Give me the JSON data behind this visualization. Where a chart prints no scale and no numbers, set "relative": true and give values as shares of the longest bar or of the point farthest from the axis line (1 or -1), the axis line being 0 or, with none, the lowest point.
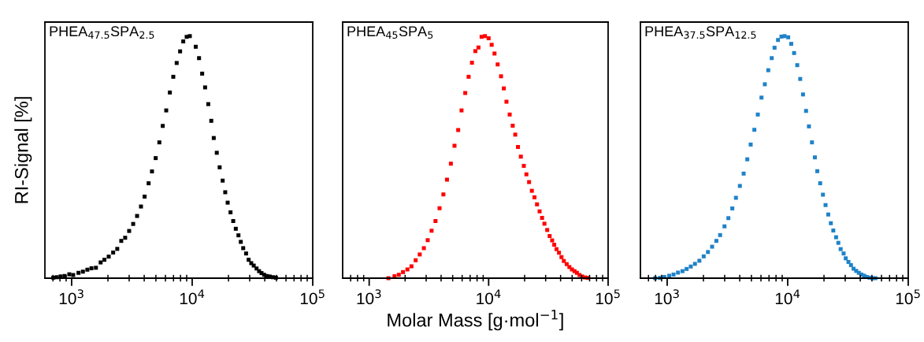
{
  "chart_data": [
    {
      "type": "scatter",
      "title": "PHEA$_{47.5}$SPA$_{2.5}$",
      "ylabel": "RI-Signal [%]",
      "relative": true,
      "marker": "square",
      "tick_labels": "x",
      "grid": false,
      "legend": false,
      "xlim": [
        600,
        100000
      ],
      "log": "x",
      "xticks": [
        {
          "value": 700,
          "label": null
        },
        {
          "value": 800,
          "label": null
        },
        {
          "value": 900,
          "label": null
        },
        {
          "value": 1000,
          "label": "10$^{3}$"
        },
        {
          "value": 2000,
          "label": null
        },
        {
          "value": 3000,
          "label": null
        },
        {
          "value": 4000,
          "label": null
        },
        {
          "value": 5000,
          "label": null
        },
        {
          "value": 6000,
          "label": null
        },
        {
          "value": 7000,
          "label": null
        },
        {
          "value": 8000,
          "label": null
        },
        {
          "value": 9000,
          "label": null
        },
        {
          "value": 10000,
          "label": "10$^{4}$"
        },
        {
          "value": 20000,
          "label": null
        },
        {
          "value": 30000,
          "label": null
        },
        {
          "value": 40000,
          "label": null
        },
        {
          "value": 50000,
          "label": null
        },
        {
          "value": 60000,
          "label": null
        },
        {
          "value": 70000,
          "label": null
        },
        {
          "value": 80000,
          "label": null
        },
        {
          "value": 90000,
          "label": null
        },
        {
          "value": 100000,
          "label": "10$^{5}$"
        }
      ],
      "series": [
        {
          "color": "#000000",
          "x": [
            704,
            752,
            810,
            873,
            956,
            1030,
            1140,
            1240,
            1350,
            1460,
            1590,
            1740,
            1870,
            2030,
            2210,
            2390,
            2580,
            2780,
            3000,
            3240,
            3490,
            3760,
            4030,
            4350,
            4640,
            4980,
            5340,
            5700,
            6090,
            6530,
            6970,
            7440,
            7940,
            8430,
            9000,
            9560,
            10700,
            11400,
            12100,
            12800,
            13600,
            14400,
            15100,
            16000,
            16900,
            17900,
            18800,
            19700,
            20800,
            21900,
            23000,
            24200,
            25300,
            26500,
            28000,
            29400,
            30900,
            32400,
            34200,
            35900,
            37600,
            39500,
            41500,
            43900,
            46700,
            49500
          ],
          "values": [
            0.002,
            0.004,
            0.007,
            0.009,
            0.016,
            0.013,
            0.022,
            0.027,
            0.035,
            0.041,
            0.043,
            0.065,
            0.076,
            0.089,
            0.106,
            0.121,
            0.154,
            0.167,
            0.195,
            0.224,
            0.257,
            0.296,
            0.337,
            0.392,
            0.441,
            0.496,
            0.561,
            0.629,
            0.693,
            0.767,
            0.832,
            0.889,
            0.937,
            0.978,
            0.997,
            1.0,
            0.956,
            0.909,
            0.845,
            0.788,
            0.719,
            0.65,
            0.579,
            0.518,
            0.458,
            0.403,
            0.355,
            0.312,
            0.272,
            0.236,
            0.204,
            0.177,
            0.15,
            0.124,
            0.102,
            0.076,
            0.062,
            0.052,
            0.04,
            0.029,
            0.021,
            0.014,
            0.009,
            0.007,
            0.004,
            0.002
          ]
        }
      ]
    },
    {
      "type": "scatter",
      "title": "PHEA$_{45}$SPA$_{5}$",
      "xlabel": "Molar Mass [g·mol$^{−1}$]",
      "relative": true,
      "marker": "square",
      "tick_labels": "x",
      "grid": false,
      "legend": false,
      "xlim": [
        600,
        100000
      ],
      "log": "x",
      "xticks": [
        {
          "value": 700,
          "label": null
        },
        {
          "value": 800,
          "label": null
        },
        {
          "value": 900,
          "label": null
        },
        {
          "value": 1000,
          "label": "10$^{3}$"
        },
        {
          "value": 2000,
          "label": null
        },
        {
          "value": 3000,
          "label": null
        },
        {
          "value": 4000,
          "label": null
        },
        {
          "value": 5000,
          "label": null
        },
        {
          "value": 6000,
          "label": null
        },
        {
          "value": 7000,
          "label": null
        },
        {
          "value": 8000,
          "label": null
        },
        {
          "value": 9000,
          "label": null
        },
        {
          "value": 10000,
          "label": "10$^{4}$"
        },
        {
          "value": 20000,
          "label": null
        },
        {
          "value": 30000,
          "label": null
        },
        {
          "value": 40000,
          "label": null
        },
        {
          "value": 50000,
          "label": null
        },
        {
          "value": 60000,
          "label": null
        },
        {
          "value": 70000,
          "label": null
        },
        {
          "value": 80000,
          "label": null
        },
        {
          "value": 90000,
          "label": null
        },
        {
          "value": 100000,
          "label": "10$^{5}$"
        }
      ],
      "series": [
        {
          "color": "#ff0000",
          "x": [
            1450,
            1630,
            1770,
            1920,
            2090,
            2260,
            2450,
            2650,
            2870,
            3090,
            3330,
            3590,
            3880,
            4180,
            4480,
            4830,
            5180,
            5560,
            5930,
            6370,
            6800,
            7250,
            7740,
            8220,
            8730,
            9320,
            10000,
            10600,
            11200,
            11900,
            12700,
            13400,
            14100,
            15000,
            15900,
            16700,
            17600,
            18600,
            19700,
            20700,
            21800,
            23000,
            24200,
            25400,
            26700,
            28000,
            29300,
            30900,
            32400,
            34000,
            35400,
            37000,
            38800,
            40700,
            42600,
            45000,
            47400,
            49800,
            52300,
            54800,
            57600,
            60600,
            64000,
            67600
          ],
          "values": [
            0.0,
            0.008,
            0.014,
            0.025,
            0.036,
            0.049,
            0.074,
            0.098,
            0.124,
            0.157,
            0.196,
            0.236,
            0.289,
            0.346,
            0.407,
            0.473,
            0.547,
            0.612,
            0.693,
            0.765,
            0.832,
            0.89,
            0.938,
            0.953,
            0.997,
            1.0,
            0.991,
            0.964,
            0.928,
            0.883,
            0.834,
            0.784,
            0.729,
            0.676,
            0.63,
            0.593,
            0.542,
            0.502,
            0.464,
            0.429,
            0.397,
            0.361,
            0.334,
            0.305,
            0.276,
            0.249,
            0.225,
            0.199,
            0.174,
            0.156,
            0.138,
            0.12,
            0.105,
            0.087,
            0.071,
            0.058,
            0.046,
            0.036,
            0.029,
            0.022,
            0.013,
            0.007,
            0.003,
            0.001
          ]
        }
      ]
    },
    {
      "type": "scatter",
      "title": "PHEA$_{37.5}$SPA$_{12.5}$",
      "relative": true,
      "marker": "square",
      "tick_labels": "x",
      "grid": false,
      "legend": false,
      "xlim": [
        600,
        100000
      ],
      "log": "x",
      "xticks": [
        {
          "value": 700,
          "label": null
        },
        {
          "value": 800,
          "label": null
        },
        {
          "value": 900,
          "label": null
        },
        {
          "value": 1000,
          "label": "10$^{3}$"
        },
        {
          "value": 2000,
          "label": null
        },
        {
          "value": 3000,
          "label": null
        },
        {
          "value": 4000,
          "label": null
        },
        {
          "value": 5000,
          "label": null
        },
        {
          "value": 6000,
          "label": null
        },
        {
          "value": 7000,
          "label": null
        },
        {
          "value": 8000,
          "label": null
        },
        {
          "value": 9000,
          "label": null
        },
        {
          "value": 10000,
          "label": "10$^{4}$"
        },
        {
          "value": 20000,
          "label": null
        },
        {
          "value": 30000,
          "label": null
        },
        {
          "value": 40000,
          "label": null
        },
        {
          "value": 50000,
          "label": null
        },
        {
          "value": 60000,
          "label": null
        },
        {
          "value": 70000,
          "label": null
        },
        {
          "value": 80000,
          "label": null
        },
        {
          "value": 90000,
          "label": null
        },
        {
          "value": 100000,
          "label": "10$^{5}$"
        }
      ],
      "series": [
        {
          "color": "#1f82c8",
          "x": [
            794,
            869,
            947,
            1040,
            1130,
            1230,
            1340,
            1450,
            1570,
            1700,
            1850,
            2010,
            2180,
            2360,
            2560,
            2750,
            2990,
            3220,
            3470,
            3720,
            4010,
            4310,
            4620,
            4930,
            5290,
            5650,
            6060,
            6460,
            6900,
            7370,
            7780,
            8310,
            8870,
            9420,
            10100,
            10700,
            11300,
            12000,
            12700,
            13400,
            14200,
            15000,
            15900,
            16800,
            17600,
            18600,
            19600,
            20600,
            21700,
            22800,
            23900,
            25200,
            26300,
            27500,
            29100,
            30300,
            31900,
            33500,
            35200,
            37000,
            38900,
            40900,
            43100,
            45300,
            47800,
            50500,
            53400
          ],
          "values": [
            0.0,
            0.001,
            0.005,
            0.01,
            0.015,
            0.023,
            0.029,
            0.038,
            0.048,
            0.059,
            0.072,
            0.09,
            0.108,
            0.13,
            0.154,
            0.178,
            0.214,
            0.248,
            0.288,
            0.332,
            0.381,
            0.432,
            0.491,
            0.552,
            0.613,
            0.676,
            0.746,
            0.801,
            0.859,
            0.909,
            0.952,
            0.984,
            0.998,
            1.0,
            0.995,
            0.968,
            0.93,
            0.88,
            0.823,
            0.759,
            0.691,
            0.627,
            0.561,
            0.499,
            0.442,
            0.392,
            0.345,
            0.302,
            0.263,
            0.227,
            0.197,
            0.169,
            0.146,
            0.12,
            0.102,
            0.082,
            0.067,
            0.054,
            0.039,
            0.03,
            0.022,
            0.015,
            0.01,
            0.005,
            0.002,
            0.0,
            0.0
          ]
        }
      ]
    }
  ]
}
